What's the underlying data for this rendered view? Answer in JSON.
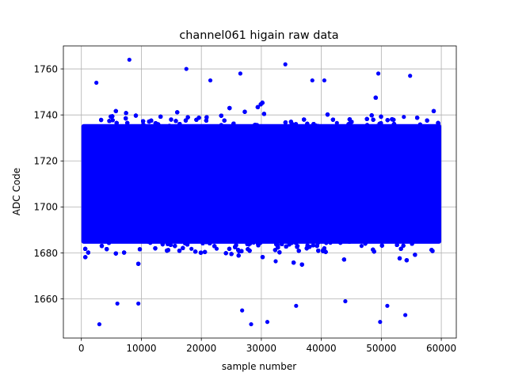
{
  "chart_data": {
    "type": "scatter",
    "title": "channel061 higain raw data",
    "xlabel": "sample number",
    "ylabel": "ADC Code",
    "xlim": [
      -3000,
      62500
    ],
    "ylim": [
      1643,
      1770
    ],
    "xticks": [
      0,
      10000,
      20000,
      30000,
      40000,
      50000,
      60000
    ],
    "xtick_labels": [
      "0",
      "10000",
      "20000",
      "30000",
      "40000",
      "50000",
      "60000"
    ],
    "yticks": [
      1660,
      1680,
      1700,
      1720,
      1740,
      1760
    ],
    "ytick_labels": [
      "1660",
      "1680",
      "1700",
      "1720",
      "1740",
      "1760"
    ],
    "grid": true,
    "marker_color": "#0000ff",
    "series": [
      {
        "sample_count": 60000,
        "x_range": [
          0,
          59999
        ],
        "dense_band": [
          1684,
          1736
        ],
        "distribution": {
          "mean": 1710,
          "std": 10
        },
        "outliers": [
          {
            "x": 8000,
            "y": 1764
          },
          {
            "x": 17500,
            "y": 1760
          },
          {
            "x": 34000,
            "y": 1762
          },
          {
            "x": 49500,
            "y": 1758
          },
          {
            "x": 26500,
            "y": 1758
          },
          {
            "x": 54800,
            "y": 1757
          },
          {
            "x": 2500,
            "y": 1754
          },
          {
            "x": 21500,
            "y": 1755
          },
          {
            "x": 38500,
            "y": 1755
          },
          {
            "x": 40500,
            "y": 1755
          },
          {
            "x": 3000,
            "y": 1649
          },
          {
            "x": 28300,
            "y": 1649
          },
          {
            "x": 31000,
            "y": 1650
          },
          {
            "x": 49800,
            "y": 1650
          },
          {
            "x": 54000,
            "y": 1653
          },
          {
            "x": 26800,
            "y": 1655
          },
          {
            "x": 35800,
            "y": 1657
          },
          {
            "x": 51000,
            "y": 1657
          },
          {
            "x": 6000,
            "y": 1658
          },
          {
            "x": 9500,
            "y": 1658
          },
          {
            "x": 44000,
            "y": 1659
          }
        ]
      }
    ]
  }
}
